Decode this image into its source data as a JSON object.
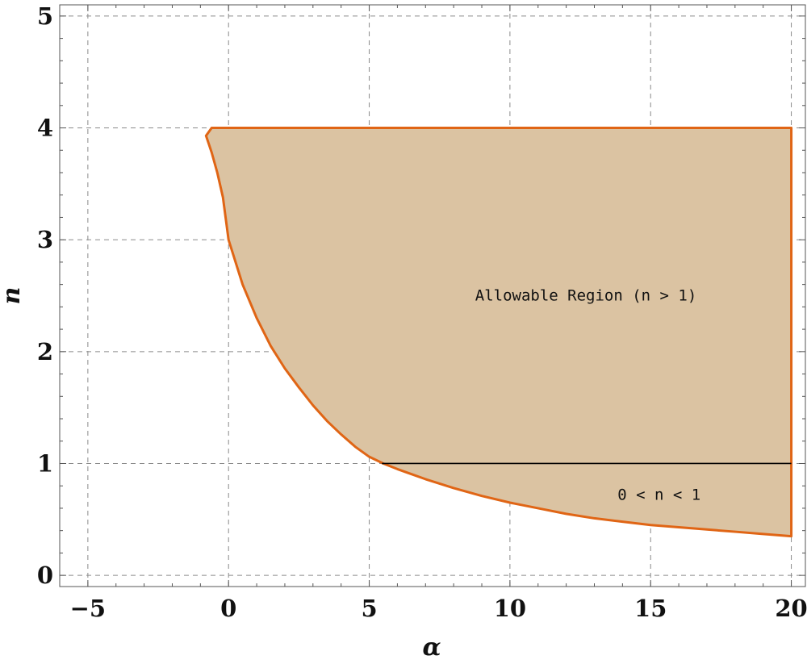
{
  "chart_data": {
    "type": "area",
    "xlabel": "α",
    "ylabel": "n",
    "xlim": [
      -6,
      20.5
    ],
    "ylim": [
      -0.1,
      5.1
    ],
    "x_ticks": [
      -5,
      0,
      5,
      10,
      15,
      20
    ],
    "y_ticks": [
      0,
      1,
      2,
      3,
      4,
      5
    ],
    "x_tick_labels": [
      "−5",
      "0",
      "5",
      "10",
      "15",
      "20"
    ],
    "y_tick_labels": [
      "0",
      "1",
      "2",
      "3",
      "4",
      "5"
    ],
    "grid": true,
    "region": {
      "lower_boundary": [
        [
          -0.8,
          3.93
        ],
        [
          -0.6,
          3.78
        ],
        [
          -0.4,
          3.6
        ],
        [
          -0.2,
          3.38
        ],
        [
          0,
          3.0
        ],
        [
          0.5,
          2.6
        ],
        [
          1,
          2.3
        ],
        [
          1.5,
          2.05
        ],
        [
          2,
          1.85
        ],
        [
          2.5,
          1.68
        ],
        [
          3,
          1.52
        ],
        [
          3.5,
          1.38
        ],
        [
          4,
          1.26
        ],
        [
          4.5,
          1.15
        ],
        [
          5,
          1.06
        ],
        [
          5.5,
          1.0
        ],
        [
          6,
          0.95
        ],
        [
          7,
          0.86
        ],
        [
          8,
          0.78
        ],
        [
          9,
          0.71
        ],
        [
          10,
          0.65
        ],
        [
          11,
          0.6
        ],
        [
          12,
          0.55
        ],
        [
          13,
          0.51
        ],
        [
          14,
          0.48
        ],
        [
          15,
          0.45
        ],
        [
          16,
          0.43
        ],
        [
          17,
          0.41
        ],
        [
          18,
          0.39
        ],
        [
          19,
          0.37
        ],
        [
          20,
          0.35
        ]
      ],
      "upper_boundary": [
        [
          -0.6,
          4.0
        ],
        [
          20,
          4.0
        ]
      ],
      "right_boundary_x": 20,
      "fill_color": "#dbc3a2",
      "edge_color": "#e06515"
    },
    "divider": {
      "x_start": 5.45,
      "x_end": 20,
      "y": 1,
      "color": "#000000"
    },
    "annotations": [
      {
        "text": "Allowable Region (n > 1)",
        "x": 12.7,
        "y": 2.5
      },
      {
        "text": "0 < n < 1",
        "x": 15.3,
        "y": 0.72
      }
    ]
  }
}
